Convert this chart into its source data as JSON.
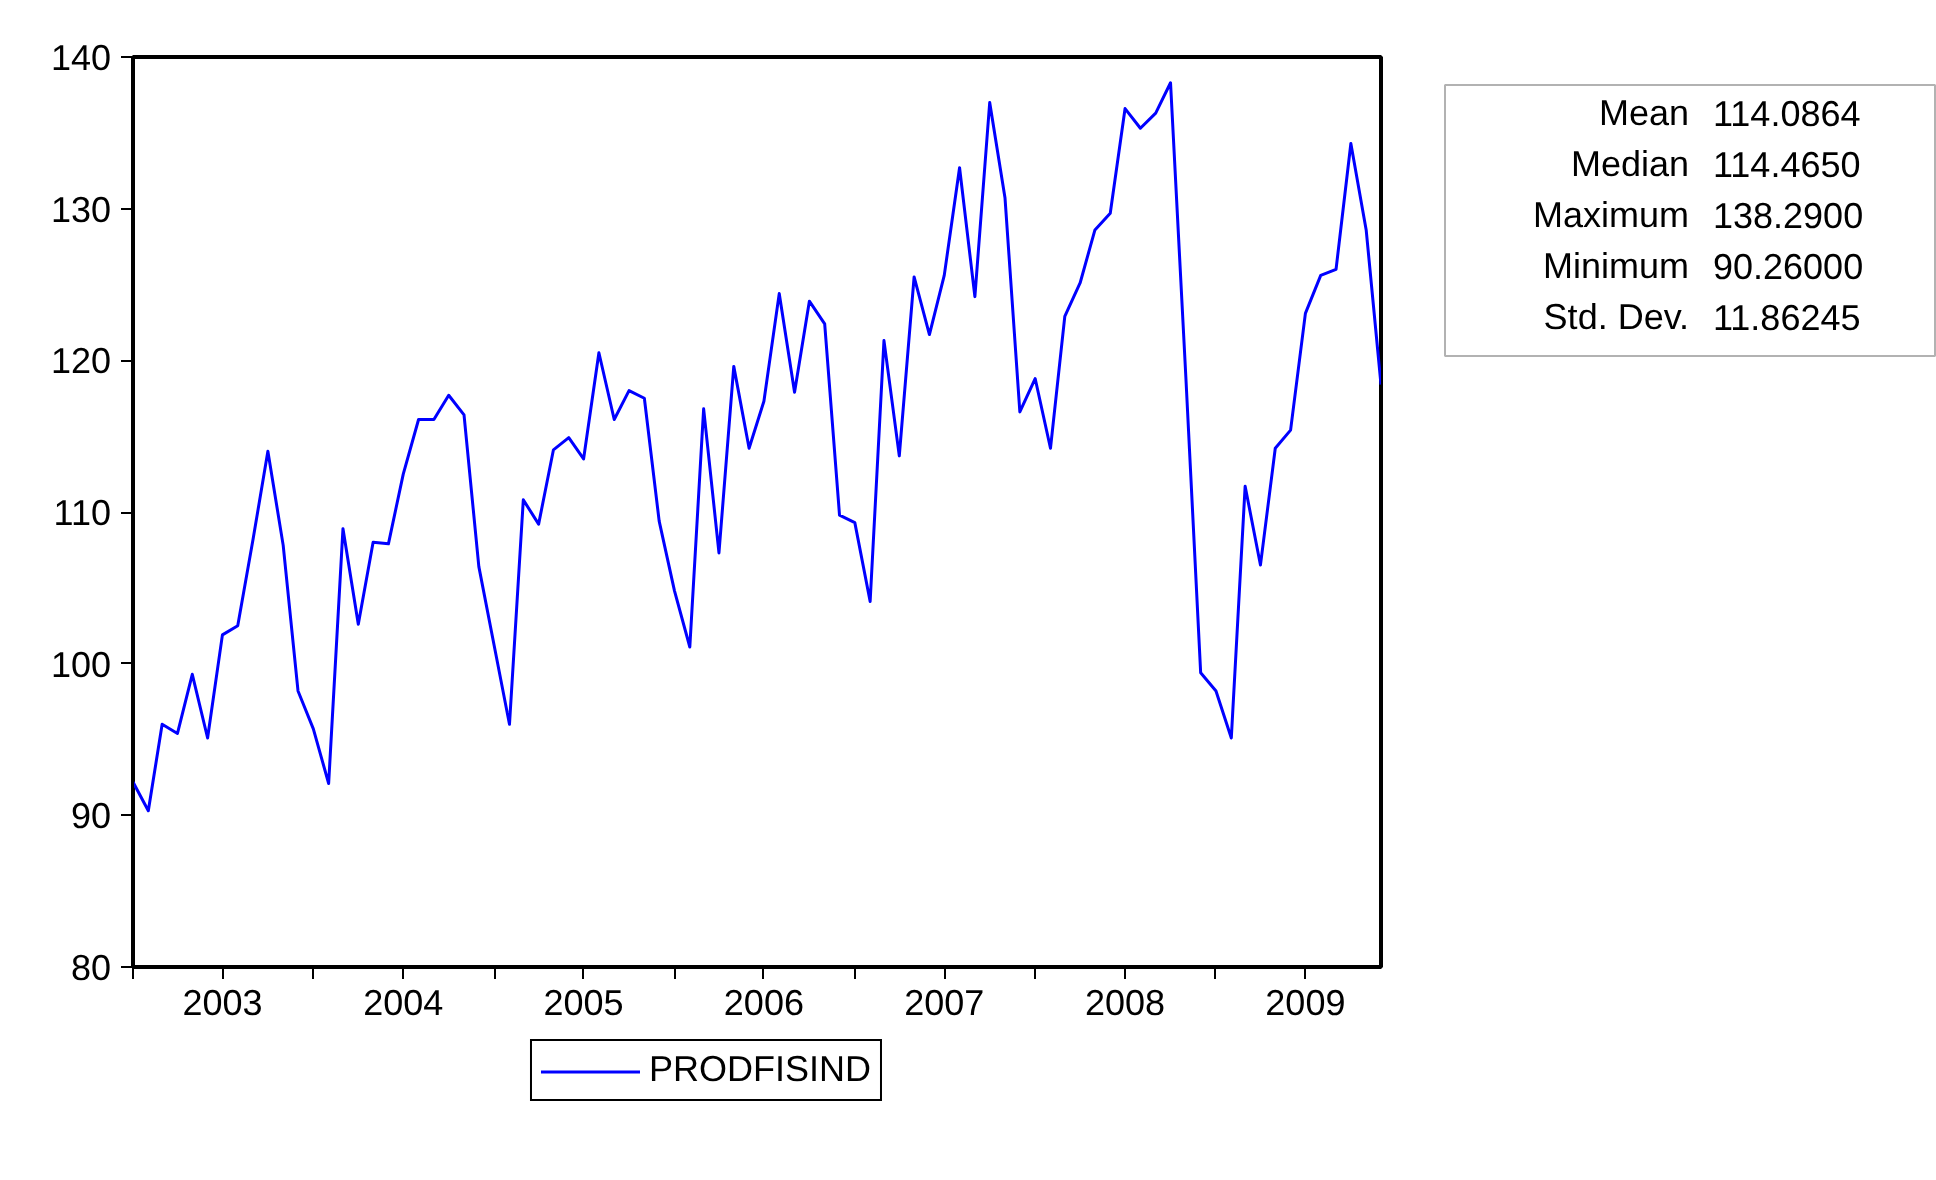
{
  "chart_data": {
    "type": "line",
    "x": [
      "2003-01",
      "2003-02",
      "2003-03",
      "2003-04",
      "2003-05",
      "2003-06",
      "2003-07",
      "2003-08",
      "2003-09",
      "2003-10",
      "2003-11",
      "2003-12",
      "2004-01",
      "2004-02",
      "2004-03",
      "2004-04",
      "2004-05",
      "2004-06",
      "2004-07",
      "2004-08",
      "2004-09",
      "2004-10",
      "2004-11",
      "2004-12",
      "2005-01",
      "2005-02",
      "2005-03",
      "2005-04",
      "2005-05",
      "2005-06",
      "2005-07",
      "2005-08",
      "2005-09",
      "2005-10",
      "2005-11",
      "2005-12",
      "2006-01",
      "2006-02",
      "2006-03",
      "2006-04",
      "2006-05",
      "2006-06",
      "2006-07",
      "2006-08",
      "2006-09",
      "2006-10",
      "2006-11",
      "2006-12",
      "2007-01",
      "2007-02",
      "2007-03",
      "2007-04",
      "2007-05",
      "2007-06",
      "2007-07",
      "2007-08",
      "2007-09",
      "2007-10",
      "2007-11",
      "2007-12",
      "2008-01",
      "2008-02",
      "2008-03",
      "2008-04",
      "2008-05",
      "2008-06",
      "2008-07",
      "2008-08",
      "2008-09",
      "2008-10",
      "2008-11",
      "2008-12",
      "2009-01",
      "2009-02",
      "2009-03",
      "2009-04",
      "2009-05",
      "2009-06",
      "2009-07",
      "2009-08",
      "2009-09",
      "2009-10",
      "2009-11",
      "2009-12"
    ],
    "series": [
      {
        "name": "PRODFISIND",
        "color": "#0000ff",
        "values": [
          92.2,
          90.3,
          96.0,
          95.4,
          99.3,
          95.1,
          101.9,
          102.5,
          108.2,
          114.0,
          107.8,
          98.2,
          95.7,
          92.1,
          108.9,
          102.6,
          108.0,
          107.9,
          112.5,
          116.1,
          116.1,
          117.7,
          116.4,
          106.4,
          101.2,
          96.0,
          110.8,
          109.2,
          114.1,
          114.9,
          113.5,
          120.5,
          116.1,
          118.0,
          117.5,
          109.4,
          104.8,
          101.1,
          116.8,
          107.3,
          119.6,
          114.2,
          117.3,
          124.4,
          117.9,
          123.9,
          122.4,
          109.8,
          109.3,
          104.1,
          121.3,
          113.7,
          125.5,
          121.7,
          125.6,
          132.7,
          124.2,
          137.0,
          130.7,
          116.6,
          118.8,
          114.2,
          122.9,
          125.1,
          128.6,
          129.7,
          136.6,
          135.3,
          136.3,
          138.3,
          118.9,
          99.4,
          98.2,
          95.1,
          111.7,
          106.5,
          114.2,
          115.4,
          123.1,
          125.6,
          126.0,
          134.3,
          128.6,
          118.4
        ]
      }
    ],
    "xlim": [
      "2003-01",
      "2009-12"
    ],
    "xticks": [
      {
        "value": "2003-01",
        "label": null
      },
      {
        "value": "2003-07",
        "label": "2003"
      },
      {
        "value": "2004-01",
        "label": null
      },
      {
        "value": "2004-07",
        "label": "2004"
      },
      {
        "value": "2005-01",
        "label": null
      },
      {
        "value": "2005-07",
        "label": "2005"
      },
      {
        "value": "2006-01",
        "label": null
      },
      {
        "value": "2006-07",
        "label": "2006"
      },
      {
        "value": "2007-01",
        "label": null
      },
      {
        "value": "2007-07",
        "label": "2007"
      },
      {
        "value": "2008-01",
        "label": null
      },
      {
        "value": "2008-07",
        "label": "2008"
      },
      {
        "value": "2009-01",
        "label": null
      },
      {
        "value": "2009-07",
        "label": "2009"
      }
    ],
    "ylim": [
      80,
      140
    ],
    "yticks": [
      80,
      90,
      100,
      110,
      120,
      130,
      140
    ],
    "grid": false,
    "legend": "bottom",
    "marker": "none",
    "line_style": "solid",
    "annotations": [
      "Mean 114.0864",
      "Median 114.4650",
      "Maximum 138.2900",
      "Minimum 90.26000",
      "Std. Dev. 11.86245"
    ]
  }
}
